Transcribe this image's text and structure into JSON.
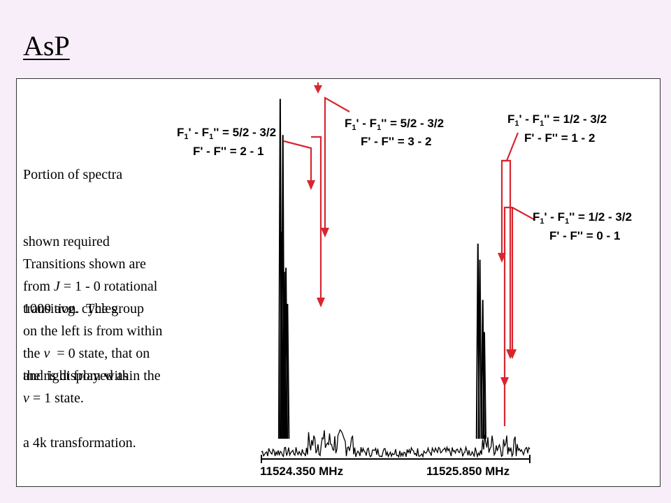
{
  "slide": {
    "title": "AsP",
    "paragraph1": [
      "Portion of spectra",
      "shown required",
      "1000 avg. cycles",
      "and is displayed as",
      "a 4k transformation."
    ],
    "paragraph2": [
      {
        "parts": [
          {
            "t": "Transitions shown are"
          }
        ]
      },
      {
        "parts": [
          {
            "t": "from "
          },
          {
            "t": "J",
            "i": true
          },
          {
            "t": " = 1 - 0 rotational"
          }
        ]
      },
      {
        "parts": [
          {
            "t": "transition.  The group"
          }
        ]
      },
      {
        "parts": [
          {
            "t": "on the left is from within"
          }
        ]
      },
      {
        "parts": [
          {
            "t": "the "
          },
          {
            "t": "v",
            "i": true
          },
          {
            "t": "  = 0 state, that on"
          }
        ]
      },
      {
        "parts": [
          {
            "t": "the right from within the"
          }
        ]
      },
      {
        "parts": [
          {
            "t": "v",
            "i": true
          },
          {
            "t": " = 1 state."
          }
        ]
      }
    ]
  },
  "colors": {
    "background": "#f7eef9",
    "arrow": "#d8262e",
    "spectrum": "#000000"
  },
  "chart_data": {
    "type": "line",
    "x_unit": "MHz",
    "x_labels": [
      "11524.350 MHz",
      "11525.850 MHz"
    ],
    "xlim": [
      11524.35,
      11525.85
    ],
    "peaks": [
      {
        "x": 11524.455,
        "y": 0.88
      },
      {
        "x": 11524.47,
        "y": 0.79
      },
      {
        "x": 11524.463,
        "y": 0.55
      },
      {
        "x": 11524.478,
        "y": 0.45
      },
      {
        "x": 11524.487,
        "y": 0.46
      },
      {
        "x": 11524.496,
        "y": 0.37
      },
      {
        "x": 11525.56,
        "y": 0.52
      },
      {
        "x": 11525.571,
        "y": 0.48
      },
      {
        "x": 11525.587,
        "y": 0.38
      },
      {
        "x": 11525.596,
        "y": 0.3
      }
    ],
    "annotations": [
      {
        "line1": [
          "F",
          "1",
          "' - F",
          "1",
          "'' = 5/2 - 3/2"
        ],
        "line2": "F' - F'' = 2 - 1"
      },
      {
        "line1": [
          "F",
          "1",
          "' - F",
          "1",
          "'' = 5/2 - 3/2"
        ],
        "line2": "F' - F'' = 3 - 2"
      },
      {
        "line1": [
          "F",
          "1",
          "' - F",
          "1",
          "'' = 1/2 - 3/2"
        ],
        "line2": "F' - F'' = 1 - 2"
      },
      {
        "line1": [
          "F",
          "1",
          "' - F",
          "1",
          "'' = 1/2 - 3/2"
        ],
        "line2": "F' - F'' = 0 - 1"
      }
    ]
  }
}
